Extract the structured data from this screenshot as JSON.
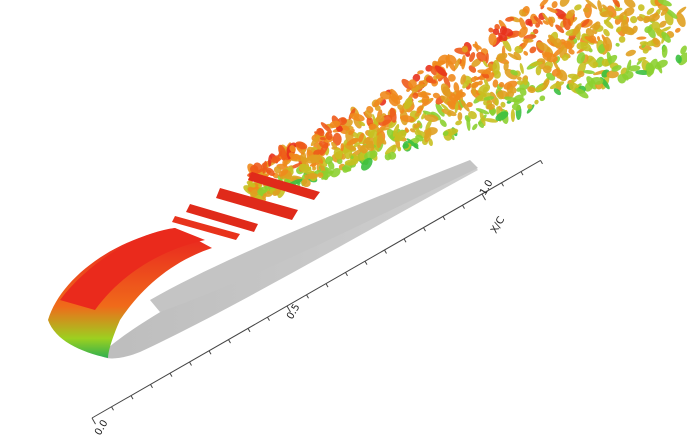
{
  "axis": {
    "title": "X/C",
    "ticks": [
      "0.0",
      "0.5",
      "1.0"
    ]
  }
}
